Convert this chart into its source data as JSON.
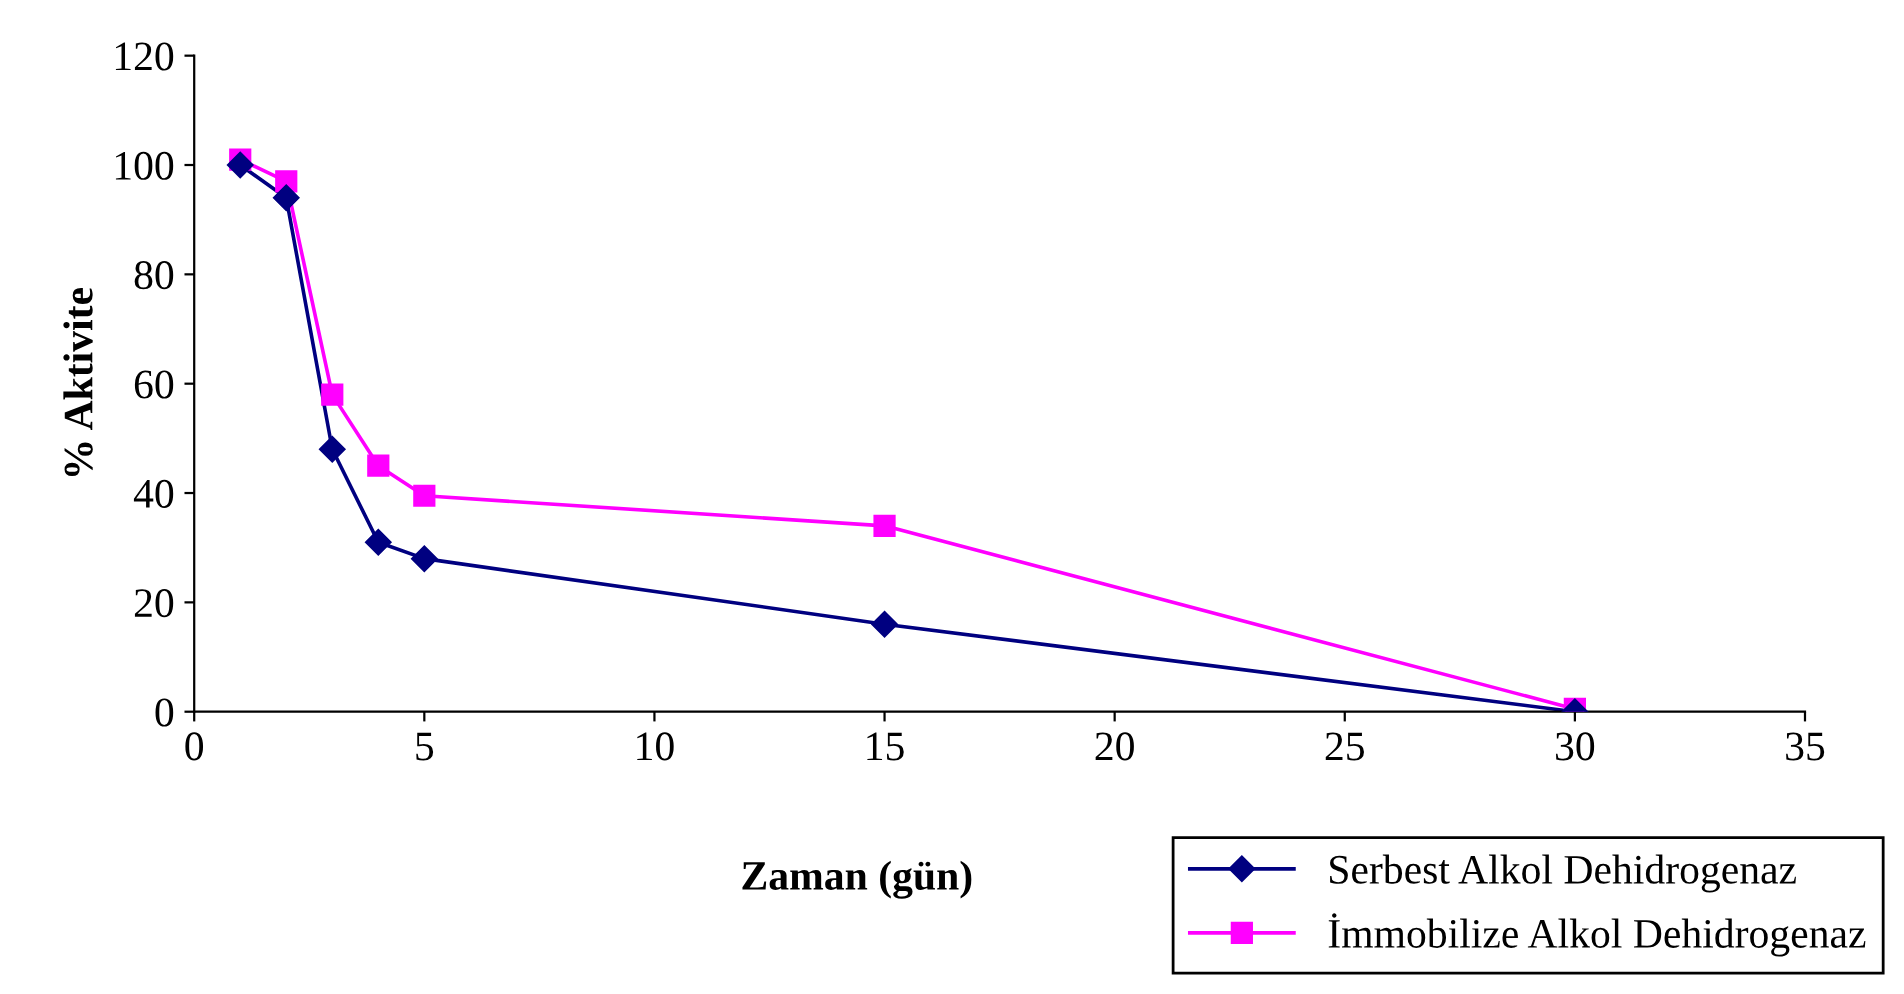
{
  "chart_data": {
    "type": "line",
    "xlabel": "Zaman (gün)",
    "ylabel": "% Aktivite",
    "xlim": [
      0,
      35
    ],
    "xticks": [
      0,
      5,
      10,
      15,
      20,
      25,
      30,
      35
    ],
    "ylim": [
      0,
      120
    ],
    "yticks": [
      0,
      20,
      40,
      60,
      80,
      100,
      120
    ],
    "grid": false,
    "legend": "bottom right",
    "line_style": "solid",
    "series": [
      {
        "name": "Serbest Alkol Dehidrogenaz",
        "color": "#000080",
        "marker": "diamond",
        "x": [
          1,
          2,
          3,
          4,
          5,
          15,
          30
        ],
        "values": [
          100,
          94,
          48,
          31,
          28,
          16,
          0
        ]
      },
      {
        "name": "İmmobilize Alkol Dehidrogenaz",
        "color": "#ff00ff",
        "marker": "square",
        "x": [
          1,
          2,
          3,
          4,
          5,
          15,
          30
        ],
        "values": [
          101,
          97,
          58,
          45,
          39.5,
          34,
          0.5
        ]
      }
    ]
  }
}
